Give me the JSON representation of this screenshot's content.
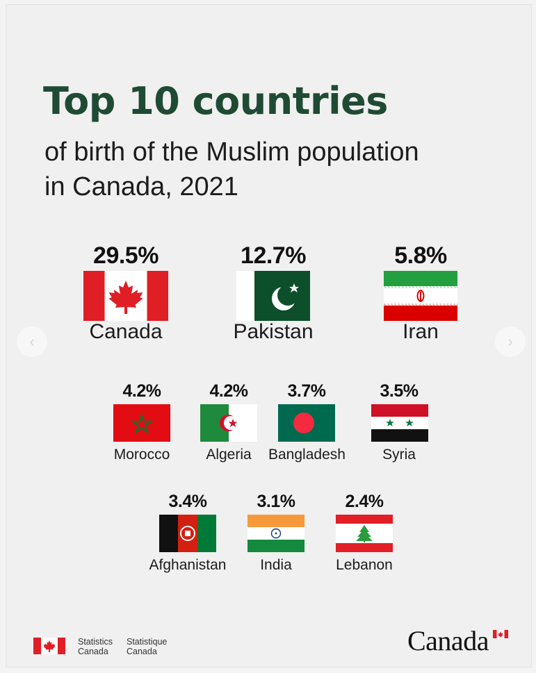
{
  "header": {
    "title": "Top 10 countries",
    "subtitle_line1": "of birth of the Muslim population",
    "subtitle_line2": "in Canada, 2021"
  },
  "countries": [
    {
      "name": "Canada",
      "percent": "29.5%",
      "value": 29.5,
      "flag_icon": "canada-flag-icon"
    },
    {
      "name": "Pakistan",
      "percent": "12.7%",
      "value": 12.7,
      "flag_icon": "pakistan-flag-icon"
    },
    {
      "name": "Iran",
      "percent": "5.8%",
      "value": 5.8,
      "flag_icon": "iran-flag-icon"
    },
    {
      "name": "Morocco",
      "percent": "4.2%",
      "value": 4.2,
      "flag_icon": "morocco-flag-icon"
    },
    {
      "name": "Algeria",
      "percent": "4.2%",
      "value": 4.2,
      "flag_icon": "algeria-flag-icon"
    },
    {
      "name": "Bangladesh",
      "percent": "3.7%",
      "value": 3.7,
      "flag_icon": "bangladesh-flag-icon"
    },
    {
      "name": "Syria",
      "percent": "3.5%",
      "value": 3.5,
      "flag_icon": "syria-flag-icon"
    },
    {
      "name": "Afghanistan",
      "percent": "3.4%",
      "value": 3.4,
      "flag_icon": "afghanistan-flag-icon"
    },
    {
      "name": "India",
      "percent": "3.1%",
      "value": 3.1,
      "flag_icon": "india-flag-icon"
    },
    {
      "name": "Lebanon",
      "percent": "2.4%",
      "value": 2.4,
      "flag_icon": "lebanon-flag-icon"
    }
  ],
  "carousel": {
    "prev_icon": "chevron-left-icon",
    "next_icon": "chevron-right-icon"
  },
  "footer": {
    "agency_en_line1": "Statistics",
    "agency_en_line2": "Canada",
    "agency_fr_line1": "Statistique",
    "agency_fr_line2": "Canada",
    "wordmark": "Canada"
  },
  "colors": {
    "title": "#1f4a33",
    "canada_red": "#e01e26",
    "background": "#f0f0f0"
  }
}
